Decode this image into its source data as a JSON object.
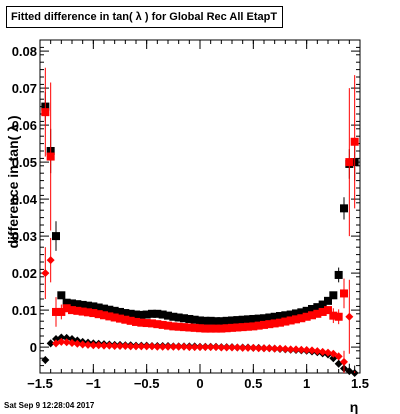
{
  "title": "Fitted difference in tan( λ ) for Global Rec All EtapT",
  "timestamp": "Sat Sep  9 12:28:04 2017",
  "chart_data": {
    "type": "scatter",
    "title": "Fitted difference in tan( λ ) for Global Rec All EtapT",
    "xlabel": "η",
    "ylabel": "difference in tan( λ )",
    "xlim": [
      -1.5,
      1.5
    ],
    "ylim": [
      -0.007,
      0.083
    ],
    "x_ticks": [
      -1.5,
      -1,
      -0.5,
      0,
      0.5,
      1,
      1.5
    ],
    "x_tick_labels": [
      "−1.5",
      "−1",
      "−0.5",
      "0",
      "0.5",
      "1",
      "1.5"
    ],
    "y_ticks": [
      0,
      0.01,
      0.02,
      0.03,
      0.04,
      0.05,
      0.06,
      0.07,
      0.08
    ],
    "y_tick_labels": [
      "0",
      "0.01",
      "0.02",
      "0.03",
      "0.04",
      "0.05",
      "0.06",
      "0.07",
      "0.08"
    ],
    "grid": false,
    "series": [
      {
        "marker": "square",
        "color": "#000000",
        "points": [
          [
            -1.45,
            0.065,
            0.004
          ],
          [
            -1.4,
            0.053,
            0.006
          ],
          [
            -1.35,
            0.03,
            0.004
          ],
          [
            -1.3,
            0.014,
            0.001
          ],
          [
            -1.25,
            0.012,
            0.001
          ],
          [
            -1.2,
            0.0118,
            0
          ],
          [
            -1.15,
            0.0116,
            0
          ],
          [
            -1.1,
            0.0114,
            0
          ],
          [
            -1.05,
            0.0112,
            0
          ],
          [
            -1.0,
            0.011,
            0
          ],
          [
            -0.95,
            0.0107,
            0
          ],
          [
            -0.9,
            0.0104,
            0
          ],
          [
            -0.85,
            0.0101,
            0
          ],
          [
            -0.8,
            0.0098,
            0
          ],
          [
            -0.75,
            0.0095,
            0
          ],
          [
            -0.7,
            0.0092,
            0
          ],
          [
            -0.65,
            0.009,
            0
          ],
          [
            -0.6,
            0.0088,
            0
          ],
          [
            -0.55,
            0.0087,
            0
          ],
          [
            -0.5,
            0.0088,
            0
          ],
          [
            -0.45,
            0.009,
            0
          ],
          [
            -0.4,
            0.009,
            0
          ],
          [
            -0.35,
            0.0088,
            0
          ],
          [
            -0.3,
            0.0085,
            0
          ],
          [
            -0.25,
            0.0082,
            0
          ],
          [
            -0.2,
            0.008,
            0
          ],
          [
            -0.15,
            0.0078,
            0
          ],
          [
            -0.1,
            0.0076,
            0
          ],
          [
            -0.05,
            0.0074,
            0
          ],
          [
            0.0,
            0.0072,
            0
          ],
          [
            0.05,
            0.0071,
            0
          ],
          [
            0.1,
            0.0071,
            0
          ],
          [
            0.15,
            0.007,
            0
          ],
          [
            0.2,
            0.007,
            0
          ],
          [
            0.25,
            0.0071,
            0
          ],
          [
            0.3,
            0.0072,
            0
          ],
          [
            0.35,
            0.0073,
            0
          ],
          [
            0.4,
            0.0074,
            0
          ],
          [
            0.45,
            0.0075,
            0
          ],
          [
            0.5,
            0.0076,
            0
          ],
          [
            0.55,
            0.0077,
            0
          ],
          [
            0.6,
            0.0078,
            0
          ],
          [
            0.65,
            0.008,
            0
          ],
          [
            0.7,
            0.0082,
            0
          ],
          [
            0.75,
            0.0084,
            0
          ],
          [
            0.8,
            0.0086,
            0
          ],
          [
            0.85,
            0.0088,
            0
          ],
          [
            0.9,
            0.0091,
            0
          ],
          [
            0.95,
            0.0094,
            0
          ],
          [
            1.0,
            0.0098,
            0
          ],
          [
            1.05,
            0.0103,
            0
          ],
          [
            1.1,
            0.0108,
            0
          ],
          [
            1.15,
            0.0115,
            0
          ],
          [
            1.2,
            0.0125,
            0.001
          ],
          [
            1.25,
            0.014,
            0.001
          ],
          [
            1.3,
            0.0195,
            0.002
          ],
          [
            1.35,
            0.0375,
            0.003
          ],
          [
            1.4,
            0.0495,
            0.004
          ],
          [
            1.45,
            0.05,
            0.005
          ]
        ]
      },
      {
        "marker": "square",
        "color": "#ff0000",
        "points": [
          [
            -1.45,
            0.0635,
            0.012
          ],
          [
            -1.4,
            0.0515,
            0.02
          ],
          [
            -1.35,
            0.0095,
            0.004
          ],
          [
            -1.3,
            0.0095,
            0.002
          ],
          [
            -1.25,
            0.0105,
            0.001
          ],
          [
            -1.2,
            0.01,
            0
          ],
          [
            -1.15,
            0.0098,
            0
          ],
          [
            -1.1,
            0.0096,
            0
          ],
          [
            -1.05,
            0.0094,
            0
          ],
          [
            -1.0,
            0.0092,
            0
          ],
          [
            -0.95,
            0.0089,
            0
          ],
          [
            -0.9,
            0.0086,
            0
          ],
          [
            -0.85,
            0.0083,
            0
          ],
          [
            -0.8,
            0.008,
            0
          ],
          [
            -0.75,
            0.0077,
            0
          ],
          [
            -0.7,
            0.0074,
            0
          ],
          [
            -0.65,
            0.0071,
            0
          ],
          [
            -0.6,
            0.0068,
            0
          ],
          [
            -0.55,
            0.0066,
            0
          ],
          [
            -0.5,
            0.0065,
            0
          ],
          [
            -0.45,
            0.0064,
            0
          ],
          [
            -0.4,
            0.0062,
            0
          ],
          [
            -0.35,
            0.006,
            0
          ],
          [
            -0.3,
            0.0058,
            0
          ],
          [
            -0.25,
            0.0056,
            0
          ],
          [
            -0.2,
            0.0055,
            0
          ],
          [
            -0.15,
            0.0054,
            0
          ],
          [
            -0.1,
            0.0053,
            0
          ],
          [
            -0.05,
            0.0052,
            0
          ],
          [
            0.0,
            0.0051,
            0
          ],
          [
            0.05,
            0.005,
            0
          ],
          [
            0.1,
            0.005,
            0
          ],
          [
            0.15,
            0.005,
            0
          ],
          [
            0.2,
            0.005,
            0
          ],
          [
            0.25,
            0.0051,
            0
          ],
          [
            0.3,
            0.0052,
            0
          ],
          [
            0.35,
            0.0053,
            0
          ],
          [
            0.4,
            0.0054,
            0
          ],
          [
            0.45,
            0.0055,
            0
          ],
          [
            0.5,
            0.0056,
            0
          ],
          [
            0.55,
            0.0058,
            0
          ],
          [
            0.6,
            0.006,
            0
          ],
          [
            0.65,
            0.0062,
            0
          ],
          [
            0.7,
            0.0064,
            0
          ],
          [
            0.75,
            0.0066,
            0
          ],
          [
            0.8,
            0.0069,
            0
          ],
          [
            0.85,
            0.0072,
            0
          ],
          [
            0.9,
            0.0075,
            0
          ],
          [
            0.95,
            0.0078,
            0
          ],
          [
            1.0,
            0.0082,
            0
          ],
          [
            1.05,
            0.0086,
            0
          ],
          [
            1.1,
            0.009,
            0
          ],
          [
            1.15,
            0.0095,
            0
          ],
          [
            1.2,
            0.01,
            0.001
          ],
          [
            1.25,
            0.0085,
            0.002
          ],
          [
            1.3,
            0.0082,
            0.002
          ],
          [
            1.35,
            0.0145,
            0.004
          ],
          [
            1.4,
            0.05,
            0.02
          ],
          [
            1.45,
            0.0555,
            0.018
          ]
        ]
      },
      {
        "marker": "diamond",
        "color": "#000000",
        "points": [
          [
            -1.45,
            -0.0035,
            0.001
          ],
          [
            -1.4,
            0.001,
            0.001
          ],
          [
            -1.35,
            0.0022,
            0
          ],
          [
            -1.3,
            0.0026,
            0
          ],
          [
            -1.25,
            0.0025,
            0
          ],
          [
            -1.2,
            0.0022,
            0
          ],
          [
            -1.15,
            0.0018,
            0
          ],
          [
            -1.1,
            0.0014,
            0
          ],
          [
            -1.05,
            0.0012,
            0
          ],
          [
            -1.0,
            0.001,
            0
          ],
          [
            -0.95,
            0.0009,
            0
          ],
          [
            -0.9,
            0.0008,
            0
          ],
          [
            -0.85,
            0.0007,
            0
          ],
          [
            -0.8,
            0.0006,
            0
          ],
          [
            -0.75,
            0.0006,
            0
          ],
          [
            -0.7,
            0.0005,
            0
          ],
          [
            -0.65,
            0.0005,
            0
          ],
          [
            -0.6,
            0.0004,
            0
          ],
          [
            -0.55,
            0.0004,
            0
          ],
          [
            -0.5,
            0.0004,
            0
          ],
          [
            -0.45,
            0.0003,
            0
          ],
          [
            -0.4,
            0.0003,
            0
          ],
          [
            -0.35,
            0.0003,
            0
          ],
          [
            -0.3,
            0.0003,
            0
          ],
          [
            -0.25,
            0.0002,
            0
          ],
          [
            -0.2,
            0.0002,
            0
          ],
          [
            -0.15,
            0.0002,
            0
          ],
          [
            -0.1,
            0.0002,
            0
          ],
          [
            -0.05,
            0.0002,
            0
          ],
          [
            0.0,
            0.0001,
            0
          ],
          [
            0.05,
            0.0001,
            0
          ],
          [
            0.1,
            0.0001,
            0
          ],
          [
            0.15,
            0.0001,
            0
          ],
          [
            0.2,
            0.0,
            0
          ],
          [
            0.25,
            0.0,
            0
          ],
          [
            0.3,
            0.0,
            0
          ],
          [
            0.35,
            -0.0001,
            0
          ],
          [
            0.4,
            -0.0001,
            0
          ],
          [
            0.45,
            -0.0001,
            0
          ],
          [
            0.5,
            -0.0002,
            0
          ],
          [
            0.55,
            -0.0002,
            0
          ],
          [
            0.6,
            -0.0003,
            0
          ],
          [
            0.65,
            -0.0003,
            0
          ],
          [
            0.7,
            -0.0004,
            0
          ],
          [
            0.75,
            -0.0005,
            0
          ],
          [
            0.8,
            -0.0006,
            0
          ],
          [
            0.85,
            -0.0007,
            0
          ],
          [
            0.9,
            -0.0008,
            0
          ],
          [
            0.95,
            -0.0009,
            0
          ],
          [
            1.0,
            -0.001,
            0
          ],
          [
            1.05,
            -0.0012,
            0
          ],
          [
            1.1,
            -0.0014,
            0
          ],
          [
            1.15,
            -0.0017,
            0
          ],
          [
            1.2,
            -0.002,
            0
          ],
          [
            1.25,
            -0.003,
            0
          ],
          [
            1.3,
            -0.0045,
            0.001
          ],
          [
            1.35,
            -0.0058,
            0.001
          ],
          [
            1.4,
            -0.0065,
            0.002
          ],
          [
            1.45,
            -0.007,
            0.002
          ]
        ]
      },
      {
        "marker": "diamond",
        "color": "#ff0000",
        "points": [
          [
            -1.45,
            0.02,
            0.007
          ],
          [
            -1.4,
            0.0235,
            0.006
          ],
          [
            -1.35,
            0.001,
            0.001
          ],
          [
            -1.3,
            0.0014,
            0
          ],
          [
            -1.25,
            0.0013,
            0
          ],
          [
            -1.2,
            0.0011,
            0
          ],
          [
            -1.15,
            0.0009,
            0
          ],
          [
            -1.1,
            0.0007,
            0
          ],
          [
            -1.05,
            0.0006,
            0
          ],
          [
            -1.0,
            0.0005,
            0
          ],
          [
            -0.95,
            0.0005,
            0
          ],
          [
            -0.9,
            0.0004,
            0
          ],
          [
            -0.85,
            0.0004,
            0
          ],
          [
            -0.8,
            0.0003,
            0
          ],
          [
            -0.75,
            0.0003,
            0
          ],
          [
            -0.7,
            0.0003,
            0
          ],
          [
            -0.65,
            0.0002,
            0
          ],
          [
            -0.6,
            0.0002,
            0
          ],
          [
            -0.55,
            0.0002,
            0
          ],
          [
            -0.5,
            0.0002,
            0
          ],
          [
            -0.45,
            0.0002,
            0
          ],
          [
            -0.4,
            0.0001,
            0
          ],
          [
            -0.35,
            0.0001,
            0
          ],
          [
            -0.3,
            0.0001,
            0
          ],
          [
            -0.25,
            0.0001,
            0
          ],
          [
            -0.2,
            0.0001,
            0
          ],
          [
            -0.15,
            0.0001,
            0
          ],
          [
            -0.1,
            0.0,
            0
          ],
          [
            -0.05,
            0.0,
            0
          ],
          [
            0.0,
            0.0,
            0
          ],
          [
            0.05,
            0.0,
            0
          ],
          [
            0.1,
            0.0,
            0
          ],
          [
            0.15,
            0.0,
            0
          ],
          [
            0.2,
            -0.0001,
            0
          ],
          [
            0.25,
            -0.0001,
            0
          ],
          [
            0.3,
            -0.0001,
            0
          ],
          [
            0.35,
            -0.0001,
            0
          ],
          [
            0.4,
            -0.0002,
            0
          ],
          [
            0.45,
            -0.0002,
            0
          ],
          [
            0.5,
            -0.0002,
            0
          ],
          [
            0.55,
            -0.0003,
            0
          ],
          [
            0.6,
            -0.0003,
            0
          ],
          [
            0.65,
            -0.0003,
            0
          ],
          [
            0.7,
            -0.0004,
            0
          ],
          [
            0.75,
            -0.0004,
            0
          ],
          [
            0.8,
            -0.0005,
            0
          ],
          [
            0.85,
            -0.0006,
            0
          ],
          [
            0.9,
            -0.0006,
            0
          ],
          [
            0.95,
            -0.0007,
            0
          ],
          [
            1.0,
            -0.0008,
            0
          ],
          [
            1.05,
            -0.0009,
            0
          ],
          [
            1.1,
            -0.0011,
            0
          ],
          [
            1.15,
            -0.0013,
            0
          ],
          [
            1.2,
            -0.0015,
            0
          ],
          [
            1.25,
            -0.0018,
            0
          ],
          [
            1.3,
            -0.0025,
            0.001
          ],
          [
            1.35,
            -0.004,
            0.003
          ],
          [
            1.4,
            0.0082,
            0.01
          ],
          [
            1.45,
            -0.0085,
            0.002
          ]
        ]
      }
    ]
  }
}
